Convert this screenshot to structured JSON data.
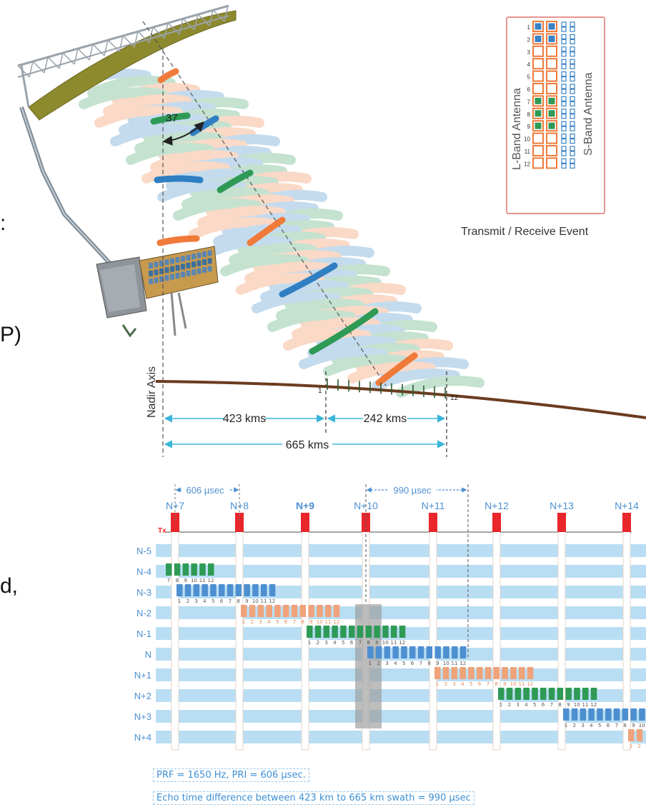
{
  "left_edge_text": [
    ":",
    "P)",
    "d,"
  ],
  "satellite": {
    "beam_angle": "37",
    "nadir_axis_label": "Nadir Axis",
    "swath_start_label": "1",
    "swath_end_label": "12"
  },
  "distances": {
    "near": "423 kms",
    "swath": "242 kms",
    "far": "665 kms"
  },
  "legend": {
    "title": "Transmit / Receive Event",
    "l_band_label": "L-Band Antenna",
    "s_band_label": "S-Band Antenna",
    "row_numbers": [
      "1",
      "2",
      "3",
      "4",
      "5",
      "6",
      "7",
      "8",
      "9",
      "10",
      "11",
      "12"
    ],
    "colors": {
      "orange": "#f07a3a",
      "blue": "#3b82c4",
      "green": "#2e9a55",
      "border": "#d9534f"
    }
  },
  "timing": {
    "pri_interval_label": "606 µsec",
    "echo_interval_label": "990 µsec",
    "tx_label": "Tx",
    "pulses": [
      "N+7",
      "N+8",
      "N+9",
      "N+10",
      "N+11",
      "N+12",
      "N+13",
      "N+14"
    ],
    "bold_pulse": "N+9",
    "rows": [
      "N-5",
      "N-4",
      "N-3",
      "N-2",
      "N-1",
      "N",
      "N+1",
      "N+2",
      "N+3",
      "N+4"
    ],
    "colors": {
      "row_band": "#b9def4",
      "tx": "#e8262b",
      "orange": "#f0a27a",
      "blue": "#4d8fd1",
      "green": "#2e9a55",
      "highlight": "#9a9a9a"
    },
    "echo_blocks": [
      {
        "row": 1,
        "color": "green",
        "labels": [
          "7",
          "8",
          "9",
          "10",
          "11",
          "12"
        ],
        "start_index": 6
      },
      {
        "row": 2,
        "color": "blue",
        "labels": [
          "1",
          "2",
          "3",
          "4",
          "5",
          "6",
          "7",
          "8",
          "9",
          "10",
          "11",
          "12"
        ],
        "start_index": 0
      },
      {
        "row": 3,
        "color": "orange",
        "labels": [
          "1",
          "2",
          "3",
          "4",
          "5",
          "6",
          "7",
          "8",
          "9",
          "10",
          "11",
          "12"
        ],
        "start_index": 0
      },
      {
        "row": 4,
        "color": "green",
        "labels": [
          "1",
          "2",
          "3",
          "4",
          "5",
          "6",
          "7",
          "8",
          "9",
          "10",
          "11",
          "12"
        ],
        "start_index": 0
      },
      {
        "row": 5,
        "color": "blue",
        "labels": [
          "1",
          "2",
          "3",
          "4",
          "5",
          "6",
          "7",
          "8",
          "9",
          "10",
          "11",
          "12"
        ],
        "start_index": 0
      },
      {
        "row": 6,
        "color": "orange",
        "labels": [
          "1",
          "2",
          "3",
          "4",
          "5",
          "6",
          "7",
          "8",
          "9",
          "10",
          "11",
          "12"
        ],
        "start_index": 0
      },
      {
        "row": 7,
        "color": "green",
        "labels": [
          "1",
          "2",
          "3",
          "4",
          "5",
          "6",
          "7",
          "8",
          "9",
          "10",
          "11",
          "12"
        ],
        "start_index": 0
      },
      {
        "row": 8,
        "color": "blue",
        "labels": [
          "1",
          "2",
          "3",
          "4",
          "5",
          "6",
          "7",
          "8",
          "9",
          "10"
        ],
        "start_index": 0
      },
      {
        "row": 9,
        "color": "orange",
        "labels": [
          "1",
          "2"
        ],
        "start_index": 0
      }
    ]
  },
  "captions": {
    "prf": "PRF = 1650 Hz, PRI = 606  µsec.",
    "echo": "Echo time difference between 423 km to 665 km swath = 990  µsec"
  }
}
